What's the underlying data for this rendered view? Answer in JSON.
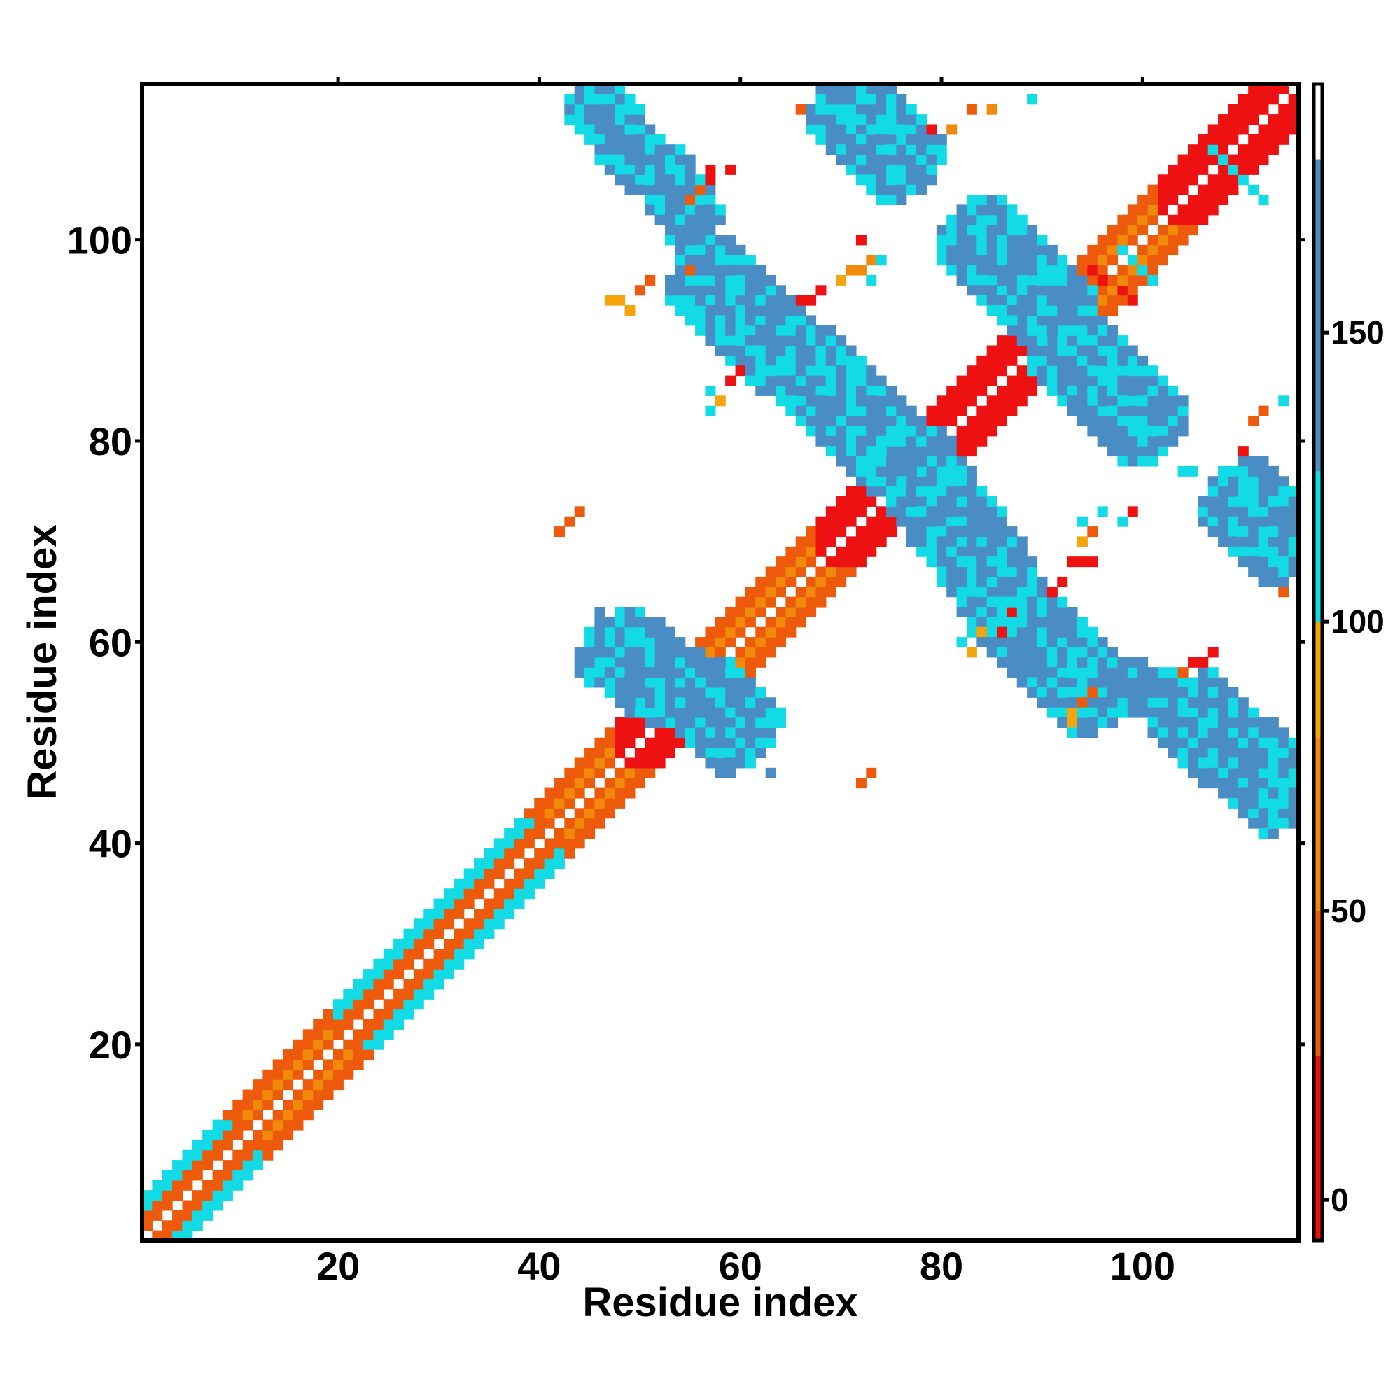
{
  "chart_data": {
    "type": "heatmap",
    "title": "",
    "xlabel": "Residue index",
    "ylabel": "Residue index",
    "xlim": [
      0.5,
      115.5
    ],
    "ylim": [
      0.5,
      115.5
    ],
    "x_ticks": [
      20,
      40,
      60,
      80,
      100
    ],
    "y_ticks": [
      20,
      40,
      60,
      80,
      100
    ],
    "colorbar": {
      "ticks": [
        0,
        50,
        100,
        150
      ],
      "range": [
        -7,
        193
      ],
      "bands": [
        {
          "from": -7,
          "to": 25,
          "color": "#ee1111"
        },
        {
          "from": 25,
          "to": 50,
          "color": "#ee5a0b"
        },
        {
          "from": 50,
          "to": 80,
          "color": "#f1890a"
        },
        {
          "from": 80,
          "to": 100,
          "color": "#f6a40c"
        },
        {
          "from": 100,
          "to": 126,
          "color": "#12dbe6"
        },
        {
          "from": 126,
          "to": 180,
          "color": "#4a8cc4"
        },
        {
          "from": 180,
          "to": 193,
          "color": "#ffffff"
        }
      ]
    },
    "grid": false,
    "legend": "colorbar right",
    "contact_regions": [
      {
        "name": "diagonal",
        "from": [
          1,
          1
        ],
        "to": [
          115,
          115
        ],
        "value": 30,
        "width": 2.2
      },
      {
        "name": "helix-a1",
        "from": [
          1,
          1
        ],
        "to": [
          10,
          10
        ],
        "value": 95,
        "width": 2
      },
      {
        "name": "helix-a2",
        "from": [
          22,
          22
        ],
        "to": [
          40,
          40
        ],
        "value": 90,
        "width": 2
      },
      {
        "name": "diag-red-1",
        "from": [
          50,
          50
        ],
        "to": [
          56,
          56
        ],
        "value": 5,
        "width": 2
      },
      {
        "name": "diag-red-2",
        "from": [
          70,
          70
        ],
        "to": [
          76,
          76
        ],
        "value": 5,
        "width": 2
      },
      {
        "name": "diag-red-3",
        "from": [
          80,
          80
        ],
        "to": [
          90,
          90
        ],
        "value": 5,
        "width": 2
      },
      {
        "name": "diag-red-4",
        "from": [
          104,
          104
        ],
        "to": [
          114,
          114
        ],
        "value": 5,
        "width": 2
      },
      {
        "name": "anti-1a",
        "from": [
          45,
          114
        ],
        "to": [
          51,
          107
        ],
        "value": 150,
        "width": 2
      },
      {
        "name": "anti-1b",
        "from": [
          52,
          107
        ],
        "to": [
          56,
          101
        ],
        "value": 150,
        "width": 1.6
      },
      {
        "name": "anti-1c",
        "from": [
          56,
          97
        ],
        "to": [
          76,
          78
        ],
        "value": 150,
        "width": 2.6
      },
      {
        "name": "anti-1d",
        "from": [
          77,
          78
        ],
        "to": [
          86,
          65
        ],
        "value": 150,
        "width": 2.6
      },
      {
        "name": "anti-1e",
        "from": [
          86,
          64
        ],
        "to": [
          96,
          54
        ],
        "value": 150,
        "width": 2.6
      },
      {
        "name": "anti-1f",
        "from": [
          96,
          56
        ],
        "to": [
          104,
          54
        ],
        "value": 150,
        "width": 1.5
      },
      {
        "name": "anti-1g",
        "from": [
          104,
          54
        ],
        "to": [
          115,
          44
        ],
        "value": 150,
        "width": 2.2
      },
      {
        "name": "anti-2a",
        "from": [
          70,
          114
        ],
        "to": [
          77,
          107
        ],
        "value": 150,
        "width": 2.4
      },
      {
        "name": "anti-2b",
        "from": [
          83,
          101
        ],
        "to": [
          92,
          92
        ],
        "value": 150,
        "width": 2.8
      },
      {
        "name": "anti-2c",
        "from": [
          92,
          90
        ],
        "to": [
          101,
          81
        ],
        "value": 150,
        "width": 2.8
      },
      {
        "name": "anti-2d",
        "from": [
          109,
          75
        ],
        "to": [
          115,
          69
        ],
        "value": 150,
        "width": 2.4
      },
      {
        "name": "anti-3a",
        "from": [
          47,
          60
        ],
        "to": [
          54,
          55
        ],
        "value": 145,
        "width": 2.4
      },
      {
        "name": "anti-3b",
        "from": [
          56,
          55
        ],
        "to": [
          61,
          50
        ],
        "value": 145,
        "width": 2.2
      }
    ],
    "isolated_contacts": [
      [
        66,
        113,
        40
      ],
      [
        79,
        111,
        5
      ],
      [
        81,
        111,
        50
      ],
      [
        83,
        113,
        40
      ],
      [
        85,
        113,
        70
      ],
      [
        89,
        114,
        110
      ],
      [
        57,
        106,
        20
      ],
      [
        57,
        107,
        20
      ],
      [
        59,
        107,
        20
      ],
      [
        55,
        104,
        40
      ],
      [
        56,
        105,
        40
      ],
      [
        75,
        104,
        110
      ],
      [
        72,
        100,
        5
      ],
      [
        71,
        97,
        70
      ],
      [
        72,
        97,
        70
      ],
      [
        73,
        98,
        70
      ],
      [
        70,
        96,
        80
      ],
      [
        73,
        96,
        110
      ],
      [
        74,
        98,
        110
      ],
      [
        47,
        94,
        90
      ],
      [
        48,
        94,
        90
      ],
      [
        49,
        93,
        80
      ],
      [
        50,
        95,
        40
      ],
      [
        51,
        96,
        40
      ],
      [
        55,
        97,
        40
      ],
      [
        66,
        94,
        20
      ],
      [
        67,
        94,
        20
      ],
      [
        68,
        95,
        5
      ],
      [
        60,
        87,
        20
      ],
      [
        59,
        86,
        5
      ],
      [
        57,
        85,
        110
      ],
      [
        58,
        84,
        80
      ],
      [
        57,
        83,
        110
      ],
      [
        42,
        71,
        40
      ],
      [
        43,
        72,
        40
      ],
      [
        44,
        73,
        40
      ],
      [
        72,
        74,
        5
      ],
      [
        46,
        63,
        150
      ],
      [
        56,
        52,
        110
      ],
      [
        58,
        49,
        110
      ],
      [
        63,
        47,
        150
      ],
      [
        72,
        46,
        40
      ],
      [
        73,
        47,
        40
      ],
      [
        82,
        60,
        110
      ],
      [
        83,
        59,
        80
      ],
      [
        84,
        61,
        80
      ],
      [
        86,
        61,
        5
      ],
      [
        87,
        63,
        5
      ],
      [
        93,
        53,
        80
      ],
      [
        93,
        52,
        80
      ],
      [
        94,
        54,
        40
      ],
      [
        95,
        55,
        40
      ],
      [
        91,
        65,
        20
      ],
      [
        92,
        66,
        5
      ],
      [
        94,
        70,
        80
      ],
      [
        95,
        71,
        40
      ],
      [
        96,
        73,
        110
      ],
      [
        94,
        72,
        110
      ],
      [
        98,
        72,
        110
      ],
      [
        99,
        73,
        5
      ],
      [
        93,
        68,
        5
      ],
      [
        94,
        68,
        5
      ],
      [
        95,
        68,
        5
      ],
      [
        107,
        59,
        20
      ],
      [
        106,
        58,
        20
      ],
      [
        105,
        58,
        20
      ],
      [
        104,
        57,
        40
      ],
      [
        104,
        77,
        110
      ],
      [
        105,
        77,
        110
      ],
      [
        110,
        75,
        110
      ],
      [
        110,
        79,
        5
      ],
      [
        111,
        82,
        40
      ],
      [
        112,
        83,
        40
      ],
      [
        114,
        84,
        110
      ],
      [
        114,
        65,
        40
      ],
      [
        107,
        109,
        110
      ],
      [
        108,
        108,
        110
      ],
      [
        109,
        107,
        110
      ],
      [
        110,
        106,
        110
      ],
      [
        111,
        105,
        110
      ],
      [
        112,
        104,
        110
      ],
      [
        98,
        99,
        110
      ],
      [
        99,
        98,
        110
      ],
      [
        100,
        97,
        110
      ],
      [
        101,
        96,
        110
      ],
      [
        95,
        97,
        20
      ],
      [
        96,
        96,
        20
      ],
      [
        98,
        95,
        5
      ],
      [
        99,
        94,
        5
      ]
    ]
  }
}
